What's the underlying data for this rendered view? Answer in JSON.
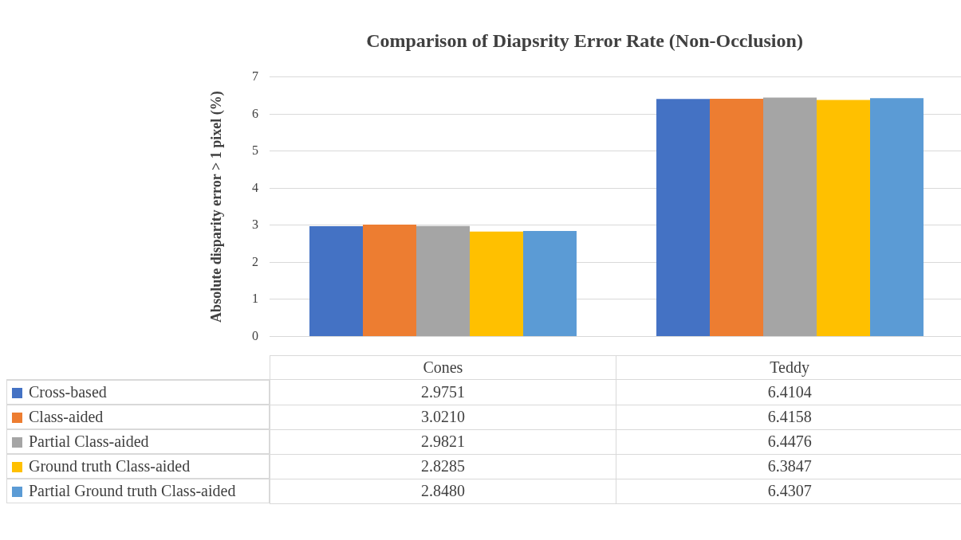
{
  "chart_data": {
    "type": "bar",
    "title": "Comparison of Diapsrity Error Rate (Non-Occlusion)",
    "ylabel": "Absolute disparity error > 1 pixel (%)",
    "categories": [
      "Cones",
      "Teddy"
    ],
    "ylim": [
      0,
      7
    ],
    "yticks": [
      0,
      1,
      2,
      3,
      4,
      5,
      6,
      7
    ],
    "grid": "y",
    "legend": "bottom",
    "series": [
      {
        "name": "Cross-based",
        "color": "#4472c4",
        "values": [
          2.9751,
          6.4104
        ],
        "value_labels": [
          "2.9751",
          "6.4104"
        ]
      },
      {
        "name": "Class-aided",
        "color": "#ed7d31",
        "values": [
          3.021,
          6.4158
        ],
        "value_labels": [
          "3.0210",
          "6.4158"
        ]
      },
      {
        "name": "Partial Class-aided",
        "color": "#a5a5a5",
        "values": [
          2.9821,
          6.4476
        ],
        "value_labels": [
          "2.9821",
          "6.4476"
        ]
      },
      {
        "name": "Ground truth Class-aided",
        "color": "#ffc000",
        "values": [
          2.8285,
          6.3847
        ],
        "value_labels": [
          "2.8285",
          "6.3847"
        ]
      },
      {
        "name": "Partial Ground truth Class-aided",
        "color": "#5b9bd5",
        "values": [
          2.848,
          6.4307
        ],
        "value_labels": [
          "2.8480",
          "6.4307"
        ]
      }
    ]
  }
}
